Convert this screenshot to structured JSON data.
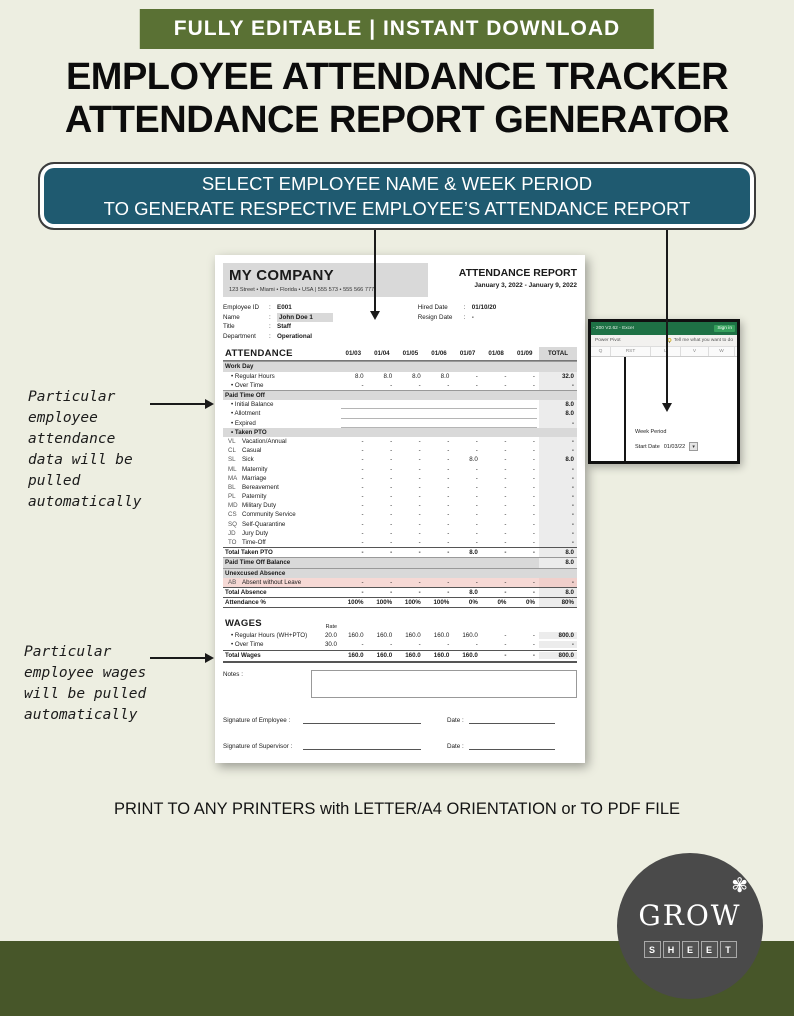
{
  "banner": {
    "text": "FULLY EDITABLE | INSTANT DOWNLOAD"
  },
  "title": {
    "line1": "EMPLOYEE ATTENDANCE TRACKER",
    "line2": "ATTENDANCE REPORT GENERATOR"
  },
  "callout": {
    "line1": "SELECT EMPLOYEE NAME & WEEK PERIOD",
    "line2": "TO GENERATE RESPECTIVE EMPLOYEE’S ATTENDANCE REPORT"
  },
  "annotations": {
    "attendance_note": "Particular\nemployee\nattendance\ndata will be\npulled\nautomatically",
    "wages_note": "Particular\nemployee wages\nwill be pulled\nautomatically"
  },
  "document": {
    "company": {
      "name": "MY COMPANY",
      "address": "123 Street • Miami • Florida • USA | 555 573 • 555 566 777"
    },
    "report": {
      "title": "ATTENDANCE REPORT",
      "period": "January 3, 2022 - January 9, 2022"
    },
    "employee": {
      "fields_left": [
        {
          "label": "Employee ID",
          "value": "E001"
        },
        {
          "label": "Name",
          "value": "John Doe 1",
          "highlight": true
        },
        {
          "label": "Title",
          "value": "Staff"
        },
        {
          "label": "Department",
          "value": "Operational"
        }
      ],
      "fields_right": [
        {
          "label": "Hired Date",
          "value": "01/10/20"
        },
        {
          "label": "Resign Date",
          "value": "-"
        }
      ]
    },
    "attendance": {
      "section_title": "ATTENDANCE",
      "columns": [
        "01/03",
        "01/04",
        "01/05",
        "01/06",
        "01/07",
        "01/08",
        "01/09"
      ],
      "total_label": "TOTAL",
      "rows": [
        {
          "t": "sec",
          "label": "Work Day"
        },
        {
          "t": "b",
          "label": "Regular Hours",
          "v": [
            "8.0",
            "8.0",
            "8.0",
            "8.0",
            "-",
            "-",
            "-"
          ],
          "total": "32.0"
        },
        {
          "t": "b",
          "label": "Over Time",
          "v": [
            "-",
            "-",
            "-",
            "-",
            "-",
            "-",
            "-"
          ],
          "total": "-"
        },
        {
          "t": "sec",
          "label": "Paid Time Off"
        },
        {
          "t": "bt",
          "label": "Initial Balance",
          "total": "8.0"
        },
        {
          "t": "bt",
          "label": "Allotment",
          "total": "8.0"
        },
        {
          "t": "bt",
          "label": "Expired",
          "total": "-"
        },
        {
          "t": "subsec",
          "label": "Taken PTO"
        },
        {
          "t": "c",
          "code": "VL",
          "label": "Vacation/Annual",
          "v": [
            "-",
            "-",
            "-",
            "-",
            "-",
            "-",
            "-"
          ],
          "total": "-"
        },
        {
          "t": "c",
          "code": "CL",
          "label": "Casual",
          "v": [
            "-",
            "-",
            "-",
            "-",
            "-",
            "-",
            "-"
          ],
          "total": "-"
        },
        {
          "t": "c",
          "code": "SL",
          "label": "Sick",
          "v": [
            "-",
            "-",
            "-",
            "-",
            "8.0",
            "-",
            "-"
          ],
          "total": "8.0"
        },
        {
          "t": "c",
          "code": "ML",
          "label": "Maternity",
          "v": [
            "-",
            "-",
            "-",
            "-",
            "-",
            "-",
            "-"
          ],
          "total": "-"
        },
        {
          "t": "c",
          "code": "MA",
          "label": "Marriage",
          "v": [
            "-",
            "-",
            "-",
            "-",
            "-",
            "-",
            "-"
          ],
          "total": "-"
        },
        {
          "t": "c",
          "code": "BL",
          "label": "Bereavement",
          "v": [
            "-",
            "-",
            "-",
            "-",
            "-",
            "-",
            "-"
          ],
          "total": "-"
        },
        {
          "t": "c",
          "code": "PL",
          "label": "Paternity",
          "v": [
            "-",
            "-",
            "-",
            "-",
            "-",
            "-",
            "-"
          ],
          "total": "-"
        },
        {
          "t": "c",
          "code": "MD",
          "label": "Military Duty",
          "v": [
            "-",
            "-",
            "-",
            "-",
            "-",
            "-",
            "-"
          ],
          "total": "-"
        },
        {
          "t": "c",
          "code": "CS",
          "label": "Community Service",
          "v": [
            "-",
            "-",
            "-",
            "-",
            "-",
            "-",
            "-"
          ],
          "total": "-"
        },
        {
          "t": "c",
          "code": "SQ",
          "label": "Self-Quarantine",
          "v": [
            "-",
            "-",
            "-",
            "-",
            "-",
            "-",
            "-"
          ],
          "total": "-"
        },
        {
          "t": "c",
          "code": "JD",
          "label": "Jury Duty",
          "v": [
            "-",
            "-",
            "-",
            "-",
            "-",
            "-",
            "-"
          ],
          "total": "-"
        },
        {
          "t": "c",
          "code": "TO",
          "label": "Time-Off",
          "v": [
            "-",
            "-",
            "-",
            "-",
            "-",
            "-",
            "-"
          ],
          "total": "-"
        },
        {
          "t": "tot",
          "label": "Total Taken PTO",
          "v": [
            "-",
            "-",
            "-",
            "-",
            "8.0",
            "-",
            "-"
          ],
          "total": "8.0"
        },
        {
          "t": "bal",
          "label": "Paid Time Off Balance",
          "total": "8.0"
        },
        {
          "t": "sec",
          "label": "Unexcused Absence"
        },
        {
          "t": "c",
          "code": "AB",
          "label": "Absent without Leave",
          "v": [
            "-",
            "-",
            "-",
            "-",
            "-",
            "-",
            "-"
          ],
          "total": "-",
          "pink": true
        },
        {
          "t": "tot",
          "label": "Total Absence",
          "v": [
            "-",
            "-",
            "-",
            "-",
            "8.0",
            "-",
            "-"
          ],
          "total": "8.0"
        },
        {
          "t": "pct",
          "label": "Attendance %",
          "v": [
            "100%",
            "100%",
            "100%",
            "100%",
            "0%",
            "0%",
            "0%"
          ],
          "total": "80%"
        }
      ]
    },
    "wages": {
      "section_title": "WAGES",
      "rate_label": "Rate",
      "rows": [
        {
          "label": "Regular Hours (WH+PTO)",
          "rate": "20.0",
          "v": [
            "160.0",
            "160.0",
            "160.0",
            "160.0",
            "160.0",
            "-",
            "-"
          ],
          "total": "800.0",
          "bullet": true
        },
        {
          "label": "Over Time",
          "rate": "30.0",
          "v": [
            "-",
            "-",
            "-",
            "-",
            "-",
            "-",
            "-"
          ],
          "total": "-",
          "bullet": true
        },
        {
          "label": "Total Wages",
          "rate": "",
          "v": [
            "160.0",
            "160.0",
            "160.0",
            "160.0",
            "160.0",
            "-",
            "-"
          ],
          "total": "800.0",
          "grand": true
        }
      ]
    },
    "notes_label": "Notes :",
    "signatures": [
      {
        "label": "Signature of Employee :",
        "date_label": "Date :"
      },
      {
        "label": "Signature of Supervisor :",
        "date_label": "Date :"
      }
    ]
  },
  "excel_popup": {
    "titlebar": "- 200 V2.62 - Excel",
    "signin": "Sign in",
    "ribbon_left": "Power Pivot",
    "ribbon_right": "Tell me what you want to do",
    "columns": [
      "Q",
      "RST",
      "U",
      "V",
      "W"
    ],
    "week_period_label": "Week Period",
    "start_date_label": "Start Date",
    "start_date_value": "01/03/22",
    "dropdown_glyph": "▾"
  },
  "footer": {
    "print_note": "PRINT TO ANY PRINTERS with LETTER/A4 ORIENTATION or TO PDF FILE"
  },
  "logo": {
    "name": "GROW",
    "sub": "SHEET",
    "flower": "✾"
  },
  "colors": {
    "banner_green": "#5a7134",
    "footer_green": "#475629",
    "callout_teal": "#1f5a70",
    "excel_green": "#1e7145",
    "logo_gray": "#4a4a4a",
    "highlight_pink": "#f6d9d5",
    "header_gray": "#d9d9d9"
  }
}
